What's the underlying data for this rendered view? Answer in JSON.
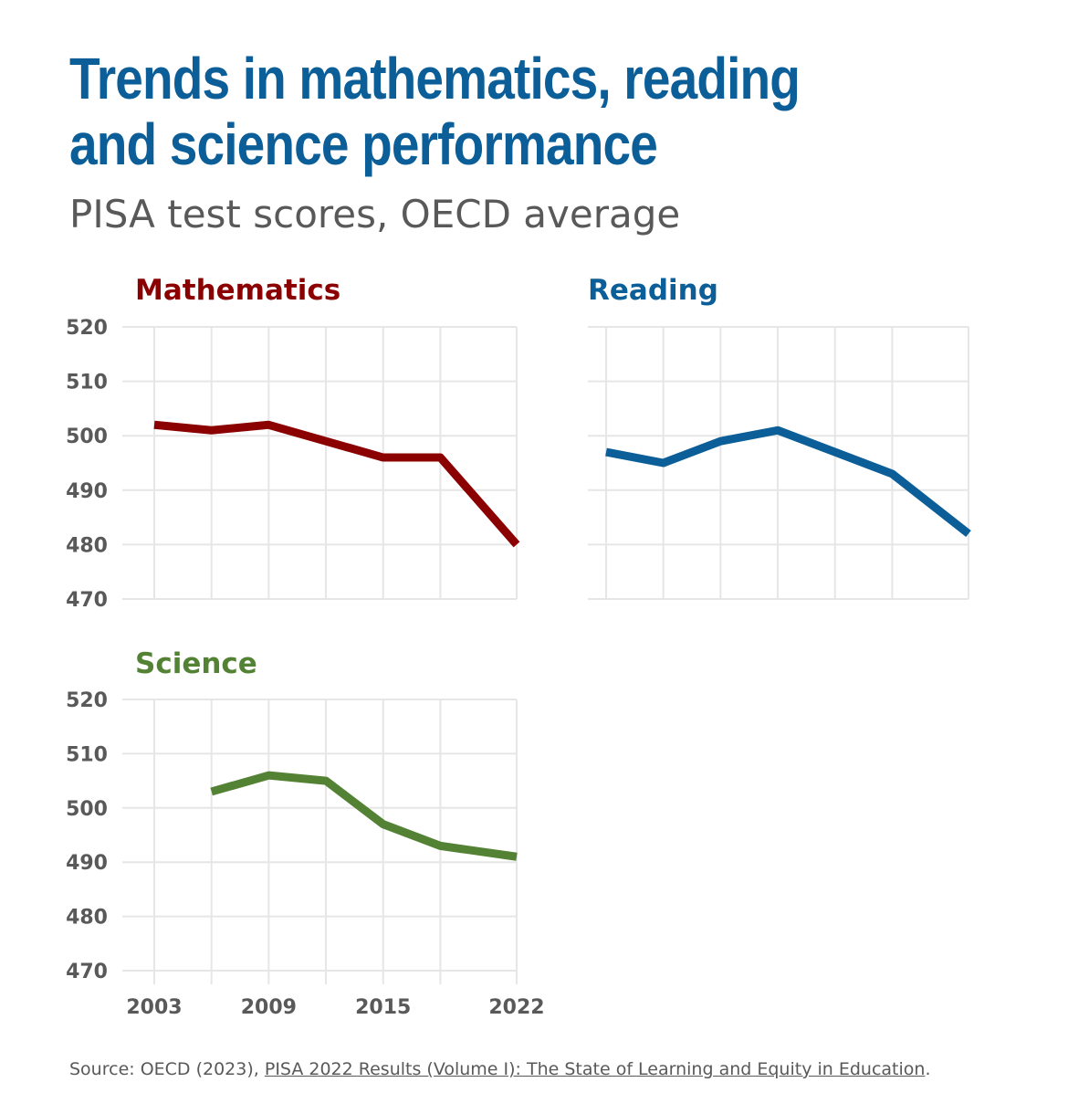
{
  "title": "Trends in mathematics, reading and science performance",
  "subtitle": "PISA test scores, OECD average",
  "source": {
    "prefix": "Source: OECD (2023), ",
    "link_text": "PISA 2022 Results (Volume I): The State of Learning and Equity in Education",
    "suffix": "."
  },
  "colors": {
    "mathematics": "#8b0000",
    "reading": "#0b5e98",
    "science": "#548235",
    "grid": "#e6e6e6",
    "tick_text": "#595959"
  },
  "chart_data": [
    {
      "type": "line",
      "title": "Mathematics",
      "x": [
        2003,
        2006,
        2009,
        2012,
        2015,
        2018,
        2022
      ],
      "series": [
        {
          "values": [
            502,
            501,
            502,
            499,
            496,
            496,
            480
          ]
        }
      ],
      "ylim": [
        470,
        520
      ],
      "yticks": [
        520,
        510,
        500,
        490,
        480,
        470
      ],
      "show_yticks": true,
      "show_xticks": false,
      "grid": true
    },
    {
      "type": "line",
      "title": "Reading",
      "x": [
        2003,
        2006,
        2009,
        2012,
        2015,
        2018,
        2022
      ],
      "series": [
        {
          "values": [
            497,
            495,
            499,
            501,
            497,
            493,
            482
          ]
        }
      ],
      "ylim": [
        470,
        520
      ],
      "show_yticks": false,
      "show_xticks": false,
      "grid": true
    },
    {
      "type": "line",
      "title": "Science",
      "x": [
        2003,
        2006,
        2009,
        2012,
        2015,
        2018,
        2022
      ],
      "series": [
        {
          "values": [
            null,
            503,
            506,
            505,
            497,
            493,
            491
          ]
        }
      ],
      "ylim": [
        470,
        520
      ],
      "yticks": [
        520,
        510,
        500,
        490,
        480,
        470
      ],
      "xticks": [
        2003,
        2009,
        2015,
        2022
      ],
      "show_yticks": true,
      "show_xticks": true,
      "grid": true
    }
  ]
}
